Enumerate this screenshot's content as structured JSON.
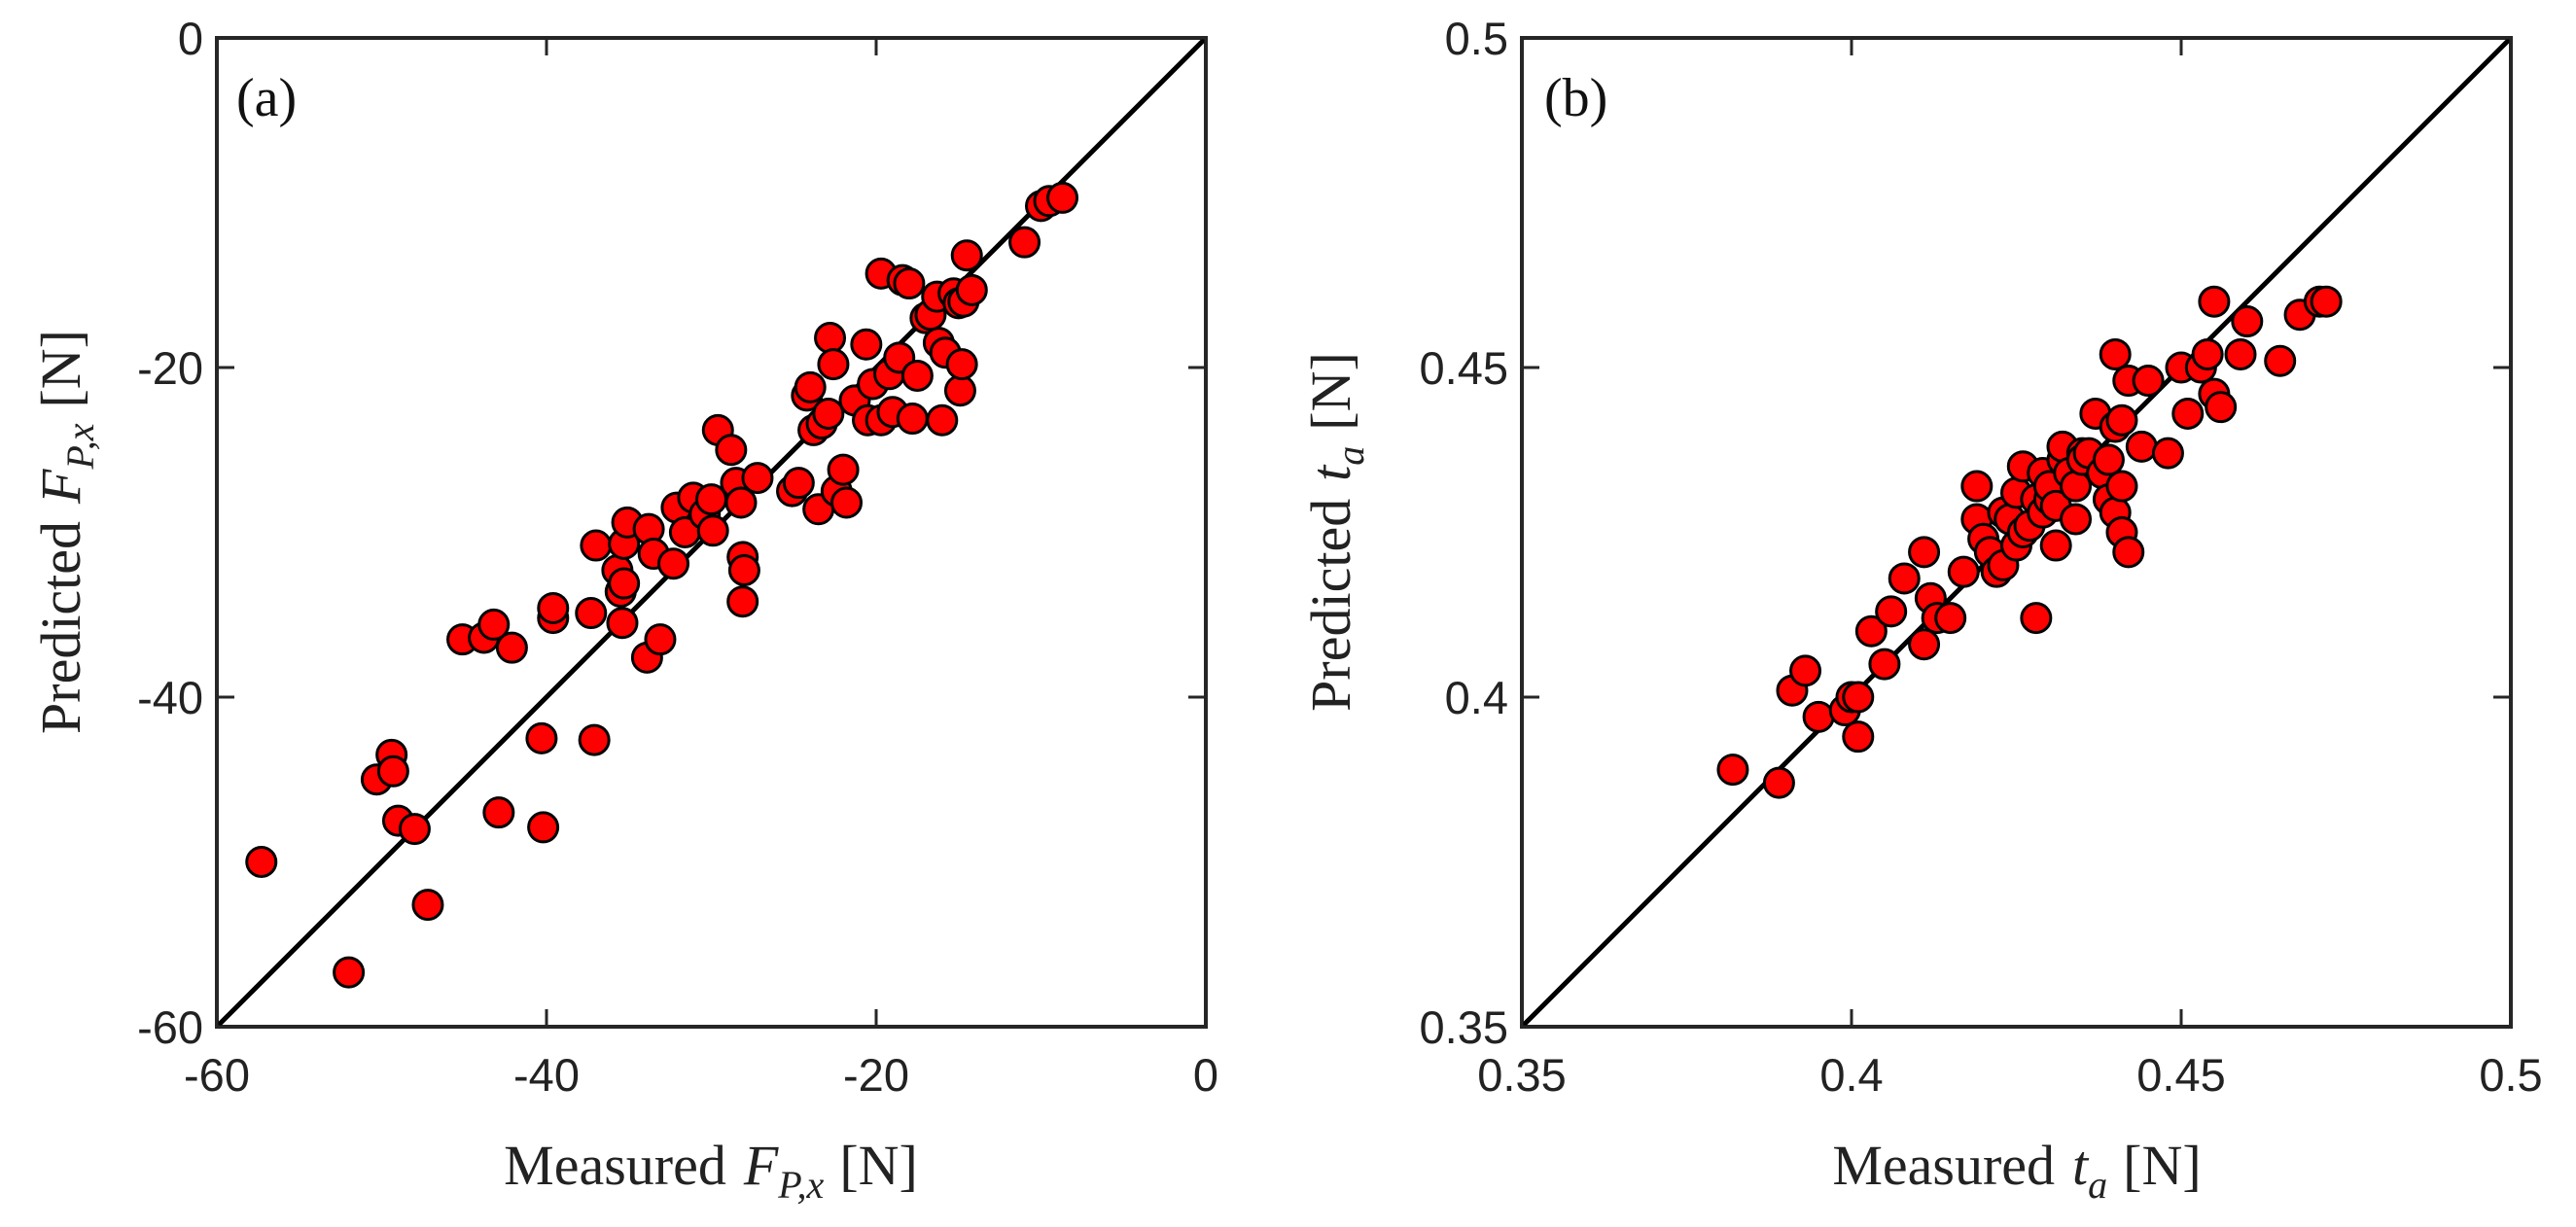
{
  "chart_data": [
    {
      "type": "scatter",
      "panel_label": "(a)",
      "xlabel": {
        "prefix": "Measured",
        "var": "F",
        "sub": "P,x",
        "unit": "[N]"
      },
      "ylabel": {
        "prefix": "Predicted",
        "var": "F",
        "sub": "P,x",
        "unit": "[N]"
      },
      "xlim": [
        -60,
        0
      ],
      "ylim": [
        -60,
        0
      ],
      "xticks": [
        -60,
        -40,
        -20,
        0
      ],
      "yticks": [
        -60,
        -40,
        -20,
        0
      ],
      "xtick_labels": [
        "-60",
        "-40",
        "-20",
        "0"
      ],
      "ytick_labels": [
        "-60",
        "-40",
        "-20",
        "0"
      ],
      "reference_line": "y = x",
      "marker_color": "#ff0000",
      "points": [
        [
          -57.3,
          -50.0
        ],
        [
          -52.0,
          -56.7
        ],
        [
          -50.3,
          -45.0
        ],
        [
          -49.4,
          -43.5
        ],
        [
          -49.3,
          -44.5
        ],
        [
          -49.0,
          -47.5
        ],
        [
          -48.0,
          -48.0
        ],
        [
          -47.2,
          -52.6
        ],
        [
          -45.1,
          -36.5
        ],
        [
          -43.8,
          -36.4
        ],
        [
          -43.2,
          -35.6
        ],
        [
          -42.9,
          -47.0
        ],
        [
          -42.1,
          -37.0
        ],
        [
          -40.3,
          -42.5
        ],
        [
          -40.2,
          -47.9
        ],
        [
          -39.6,
          -35.2
        ],
        [
          -39.6,
          -34.6
        ],
        [
          -37.3,
          -34.9
        ],
        [
          -37.1,
          -42.6
        ],
        [
          -37.0,
          -30.8
        ],
        [
          -35.7,
          -32.3
        ],
        [
          -35.5,
          -33.6
        ],
        [
          -35.4,
          -35.5
        ],
        [
          -35.3,
          -33.1
        ],
        [
          -35.3,
          -30.7
        ],
        [
          -35.1,
          -29.4
        ],
        [
          -33.9,
          -37.6
        ],
        [
          -33.8,
          -29.8
        ],
        [
          -33.5,
          -31.3
        ],
        [
          -33.1,
          -36.5
        ],
        [
          -32.3,
          -31.9
        ],
        [
          -32.1,
          -28.5
        ],
        [
          -31.6,
          -30.0
        ],
        [
          -31.1,
          -27.9
        ],
        [
          -30.4,
          -28.9
        ],
        [
          -30.0,
          -28.0
        ],
        [
          -29.9,
          -29.9
        ],
        [
          -29.6,
          -23.8
        ],
        [
          -28.8,
          -25.0
        ],
        [
          -28.5,
          -27.0
        ],
        [
          -28.2,
          -28.2
        ],
        [
          -28.1,
          -31.5
        ],
        [
          -28.1,
          -34.2
        ],
        [
          -28.0,
          -32.3
        ],
        [
          -27.2,
          -26.7
        ],
        [
          -25.1,
          -27.5
        ],
        [
          -24.7,
          -27.0
        ],
        [
          -24.2,
          -21.7
        ],
        [
          -24.0,
          -21.2
        ],
        [
          -23.8,
          -23.8
        ],
        [
          -23.5,
          -28.6
        ],
        [
          -23.3,
          -23.4
        ],
        [
          -22.9,
          -22.8
        ],
        [
          -22.8,
          -18.2
        ],
        [
          -22.6,
          -19.8
        ],
        [
          -22.4,
          -27.5
        ],
        [
          -22.0,
          -26.2
        ],
        [
          -21.8,
          -28.2
        ],
        [
          -21.3,
          -22.0
        ],
        [
          -20.6,
          -18.6
        ],
        [
          -20.5,
          -23.2
        ],
        [
          -20.2,
          -21.0
        ],
        [
          -19.7,
          -23.2
        ],
        [
          -19.7,
          -14.3
        ],
        [
          -19.2,
          -20.4
        ],
        [
          -19.0,
          -22.7
        ],
        [
          -18.6,
          -19.4
        ],
        [
          -18.4,
          -14.7
        ],
        [
          -18.0,
          -14.9
        ],
        [
          -17.8,
          -23.1
        ],
        [
          -17.5,
          -20.5
        ],
        [
          -17.0,
          -17.0
        ],
        [
          -16.7,
          -16.8
        ],
        [
          -16.3,
          -15.7
        ],
        [
          -16.2,
          -18.5
        ],
        [
          -16.0,
          -23.2
        ],
        [
          -15.8,
          -19.1
        ],
        [
          -15.3,
          -15.5
        ],
        [
          -15.0,
          -16.1
        ],
        [
          -14.9,
          -21.4
        ],
        [
          -14.8,
          -19.8
        ],
        [
          -14.7,
          -16.0
        ],
        [
          -14.5,
          -13.2
        ],
        [
          -14.2,
          -15.3
        ],
        [
          -11.0,
          -12.4
        ],
        [
          -10.0,
          -10.2
        ],
        [
          -9.5,
          -9.9
        ],
        [
          -8.7,
          -9.7
        ]
      ]
    },
    {
      "type": "scatter",
      "panel_label": "(b)",
      "xlabel": {
        "prefix": "Measured",
        "var": "t",
        "sub": "a",
        "unit": "[N]"
      },
      "ylabel": {
        "prefix": "Predicted",
        "var": "t",
        "sub": "a",
        "unit": "[N]"
      },
      "xlim": [
        0.35,
        0.5
      ],
      "ylim": [
        0.35,
        0.5
      ],
      "xticks": [
        0.35,
        0.4,
        0.45,
        0.5
      ],
      "yticks": [
        0.35,
        0.4,
        0.45,
        0.5
      ],
      "xtick_labels": [
        "0.35",
        "0.4",
        "0.45",
        "0.5"
      ],
      "ytick_labels": [
        "0.35",
        "0.4",
        "0.45",
        "0.5"
      ],
      "reference_line": "y = x",
      "marker_color": "#ff0000",
      "points": [
        [
          0.382,
          0.389
        ],
        [
          0.389,
          0.387
        ],
        [
          0.391,
          0.401
        ],
        [
          0.393,
          0.404
        ],
        [
          0.395,
          0.397
        ],
        [
          0.399,
          0.398
        ],
        [
          0.4,
          0.4
        ],
        [
          0.401,
          0.4
        ],
        [
          0.401,
          0.394
        ],
        [
          0.403,
          0.41
        ],
        [
          0.405,
          0.405
        ],
        [
          0.406,
          0.413
        ],
        [
          0.408,
          0.418
        ],
        [
          0.411,
          0.422
        ],
        [
          0.411,
          0.408
        ],
        [
          0.412,
          0.415
        ],
        [
          0.413,
          0.412
        ],
        [
          0.415,
          0.412
        ],
        [
          0.417,
          0.419
        ],
        [
          0.419,
          0.432
        ],
        [
          0.419,
          0.427
        ],
        [
          0.42,
          0.424
        ],
        [
          0.421,
          0.422
        ],
        [
          0.422,
          0.419
        ],
        [
          0.423,
          0.42
        ],
        [
          0.423,
          0.428
        ],
        [
          0.424,
          0.427
        ],
        [
          0.425,
          0.431
        ],
        [
          0.425,
          0.423
        ],
        [
          0.426,
          0.435
        ],
        [
          0.426,
          0.425
        ],
        [
          0.427,
          0.426
        ],
        [
          0.428,
          0.43
        ],
        [
          0.428,
          0.412
        ],
        [
          0.429,
          0.428
        ],
        [
          0.429,
          0.434
        ],
        [
          0.43,
          0.43
        ],
        [
          0.43,
          0.432
        ],
        [
          0.431,
          0.429
        ],
        [
          0.431,
          0.423
        ],
        [
          0.432,
          0.436
        ],
        [
          0.432,
          0.438
        ],
        [
          0.433,
          0.434
        ],
        [
          0.434,
          0.432
        ],
        [
          0.434,
          0.427
        ],
        [
          0.435,
          0.437
        ],
        [
          0.435,
          0.436
        ],
        [
          0.436,
          0.437
        ],
        [
          0.437,
          0.443
        ],
        [
          0.438,
          0.434
        ],
        [
          0.439,
          0.436
        ],
        [
          0.439,
          0.43
        ],
        [
          0.44,
          0.452
        ],
        [
          0.44,
          0.441
        ],
        [
          0.44,
          0.428
        ],
        [
          0.441,
          0.442
        ],
        [
          0.441,
          0.432
        ],
        [
          0.441,
          0.425
        ],
        [
          0.442,
          0.422
        ],
        [
          0.442,
          0.448
        ],
        [
          0.444,
          0.438
        ],
        [
          0.445,
          0.448
        ],
        [
          0.448,
          0.437
        ],
        [
          0.45,
          0.45
        ],
        [
          0.451,
          0.443
        ],
        [
          0.453,
          0.45
        ],
        [
          0.454,
          0.452
        ],
        [
          0.455,
          0.446
        ],
        [
          0.455,
          0.46
        ],
        [
          0.456,
          0.444
        ],
        [
          0.459,
          0.452
        ],
        [
          0.46,
          0.457
        ],
        [
          0.465,
          0.451
        ],
        [
          0.468,
          0.458
        ],
        [
          0.471,
          0.46
        ],
        [
          0.472,
          0.46
        ]
      ]
    }
  ]
}
